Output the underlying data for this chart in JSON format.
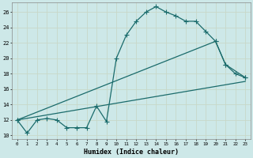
{
  "xlabel": "Humidex (Indice chaleur)",
  "bg_color": "#cde8e8",
  "grid_color": "#b8d8d8",
  "line_color": "#1a6b6b",
  "xlim": [
    -0.5,
    23.5
  ],
  "ylim": [
    9.5,
    27.2
  ],
  "xticks": [
    0,
    1,
    2,
    3,
    4,
    5,
    6,
    7,
    8,
    9,
    10,
    11,
    12,
    13,
    14,
    15,
    16,
    17,
    18,
    19,
    20,
    21,
    22,
    23
  ],
  "yticks": [
    10,
    12,
    14,
    16,
    18,
    20,
    22,
    24,
    26
  ],
  "line1_x": [
    0,
    1,
    2,
    3,
    4,
    5,
    6,
    7,
    8,
    9,
    10,
    11,
    12,
    13,
    14,
    15,
    16,
    17,
    18,
    19,
    20,
    21,
    22,
    23
  ],
  "line1_y": [
    12,
    10.3,
    12,
    12.2,
    12,
    11,
    11,
    11,
    13.8,
    11.8,
    20,
    23,
    24.8,
    26,
    26.7,
    26,
    25.5,
    24.8,
    24.8,
    23.5,
    22.2,
    19.2,
    18,
    17.5
  ],
  "line2_x": [
    0,
    20,
    21,
    23
  ],
  "line2_y": [
    12,
    22.2,
    19.2,
    17.5
  ],
  "line3_x": [
    0,
    23
  ],
  "line3_y": [
    12,
    17.0
  ]
}
